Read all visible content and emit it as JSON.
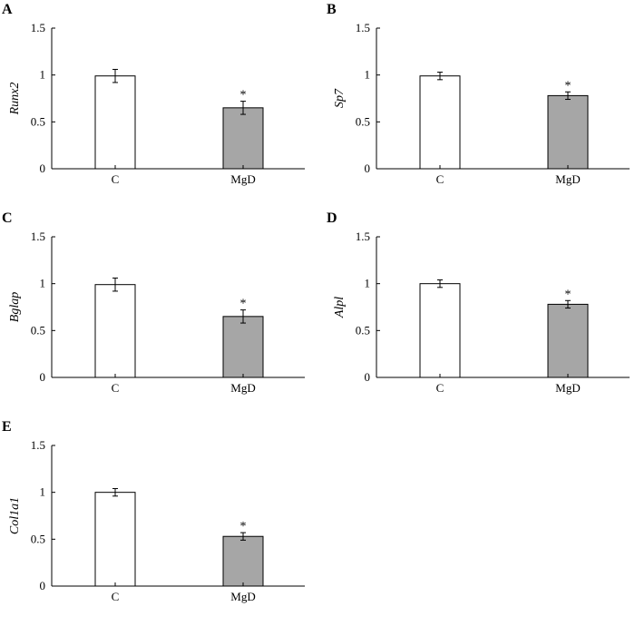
{
  "chart_data": [
    {
      "panel_label": "A",
      "type": "bar",
      "ylabel": "Runx2",
      "categories": [
        "C",
        "MgD"
      ],
      "values": [
        0.99,
        0.65
      ],
      "errors": [
        0.07,
        0.07
      ],
      "significance": [
        "",
        "*"
      ],
      "bar_colors": [
        "#ffffff",
        "#a6a6a6"
      ],
      "ylim": [
        0,
        1.5
      ],
      "yticks": [
        "0",
        "0.5",
        "1",
        "1.5"
      ],
      "grid": false
    },
    {
      "panel_label": "B",
      "type": "bar",
      "ylabel": "Sp7",
      "categories": [
        "C",
        "MgD"
      ],
      "values": [
        0.99,
        0.78
      ],
      "errors": [
        0.04,
        0.04
      ],
      "significance": [
        "",
        "*"
      ],
      "bar_colors": [
        "#ffffff",
        "#a6a6a6"
      ],
      "ylim": [
        0,
        1.5
      ],
      "yticks": [
        "0",
        "0.5",
        "1",
        "1.5"
      ],
      "grid": false
    },
    {
      "panel_label": "C",
      "type": "bar",
      "ylabel": "Bglap",
      "categories": [
        "C",
        "MgD"
      ],
      "values": [
        0.99,
        0.65
      ],
      "errors": [
        0.07,
        0.07
      ],
      "significance": [
        "",
        "*"
      ],
      "bar_colors": [
        "#ffffff",
        "#a6a6a6"
      ],
      "ylim": [
        0,
        1.5
      ],
      "yticks": [
        "0",
        "0.5",
        "1",
        "1.5"
      ],
      "grid": false
    },
    {
      "panel_label": "D",
      "type": "bar",
      "ylabel": "Alpl",
      "categories": [
        "C",
        "MgD"
      ],
      "values": [
        1.0,
        0.78
      ],
      "errors": [
        0.04,
        0.04
      ],
      "significance": [
        "",
        "*"
      ],
      "bar_colors": [
        "#ffffff",
        "#a6a6a6"
      ],
      "ylim": [
        0,
        1.5
      ],
      "yticks": [
        "0",
        "0.5",
        "1",
        "1.5"
      ],
      "grid": false
    },
    {
      "panel_label": "E",
      "type": "bar",
      "ylabel": "Col1a1",
      "categories": [
        "C",
        "MgD"
      ],
      "values": [
        1.0,
        0.53
      ],
      "errors": [
        0.04,
        0.04
      ],
      "significance": [
        "",
        "*"
      ],
      "bar_colors": [
        "#ffffff",
        "#a6a6a6"
      ],
      "ylim": [
        0,
        1.5
      ],
      "yticks": [
        "0",
        "0.5",
        "1",
        "1.5"
      ],
      "grid": false
    }
  ]
}
